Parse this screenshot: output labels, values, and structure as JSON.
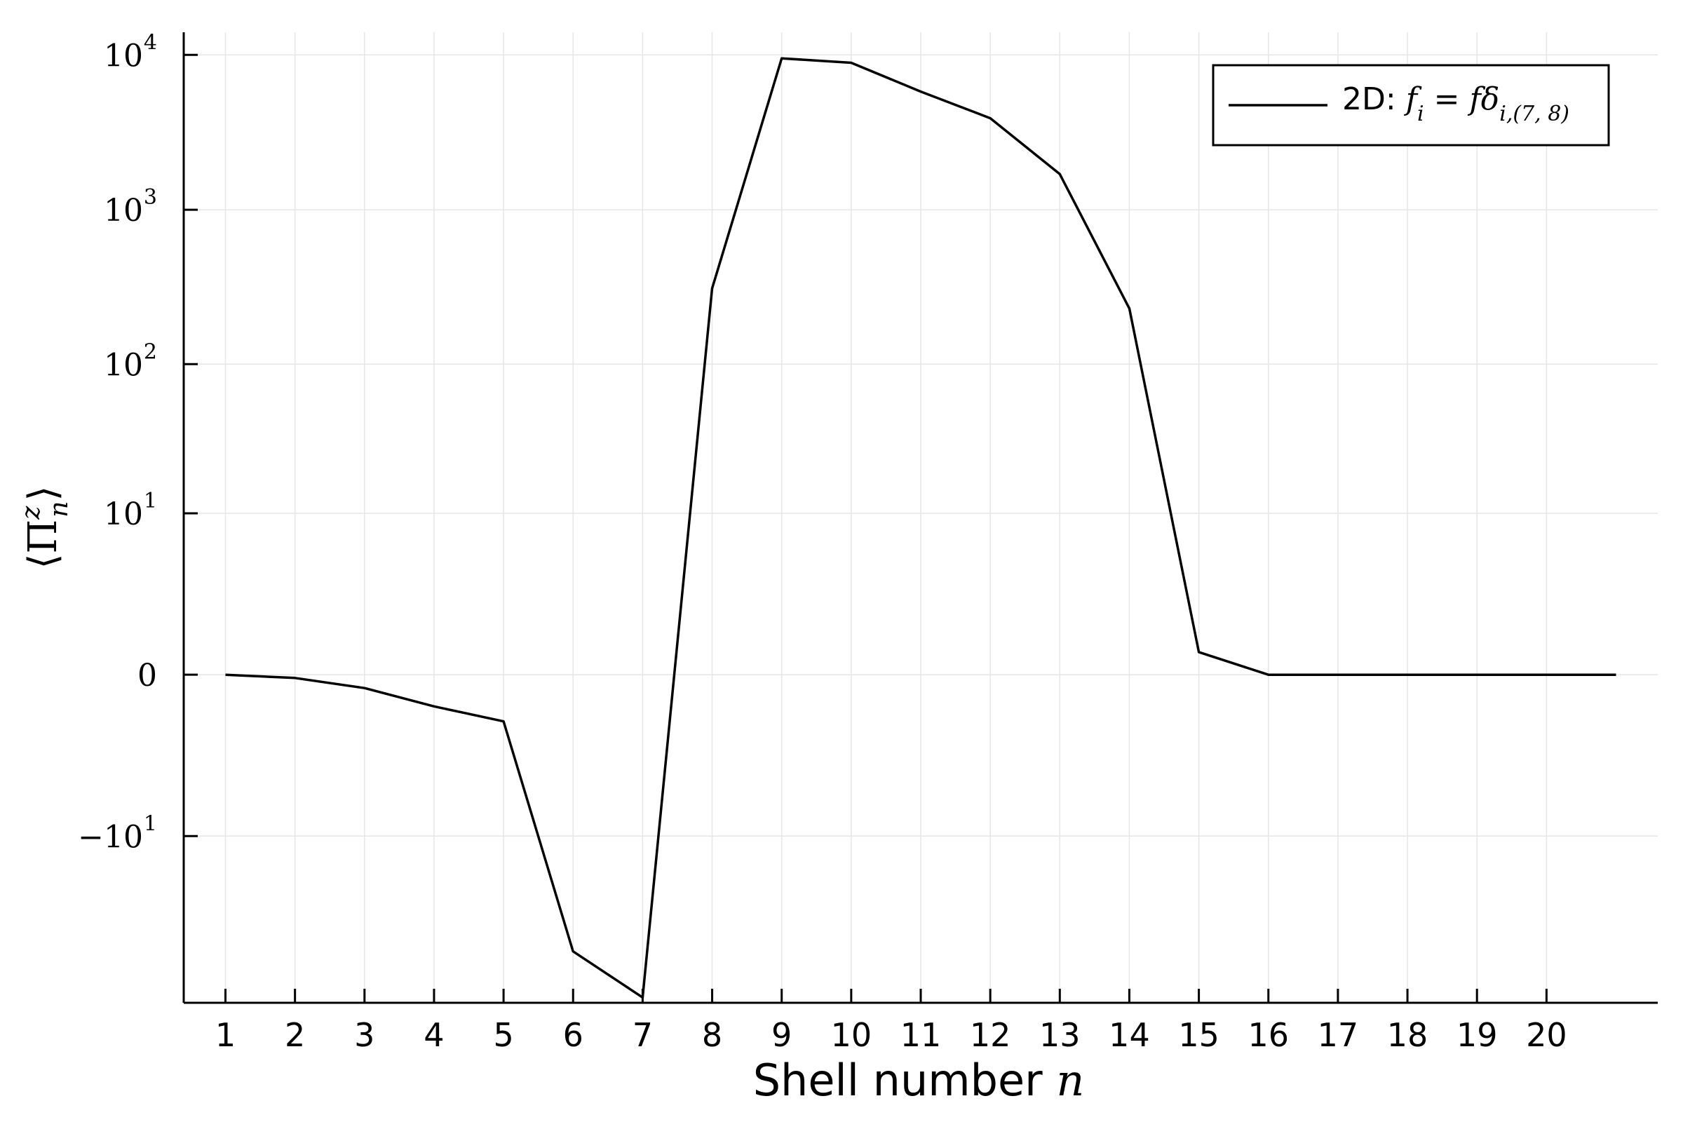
{
  "chart_data": {
    "type": "line",
    "xlabel": "Shell number",
    "xlabel_math": "n",
    "ylabel": "⟨Π",
    "ylabel_sup": "z",
    "ylabel_sub": "n",
    "ylabel_close": "⟩",
    "y_scale": "symlog",
    "grid": true,
    "legend_position": "top-right",
    "x_ticks": [
      1,
      2,
      3,
      4,
      5,
      6,
      7,
      8,
      9,
      10,
      11,
      12,
      13,
      14,
      15,
      16,
      17,
      18,
      19,
      20
    ],
    "xlim": [
      0.4,
      21.6
    ],
    "ylim": [
      -130,
      14000
    ],
    "y_ticks": [
      {
        "value": 10000,
        "base": "10",
        "exp": "4"
      },
      {
        "value": 1000,
        "base": "10",
        "exp": "3"
      },
      {
        "value": 100,
        "base": "10",
        "exp": "2"
      },
      {
        "value": 10,
        "base": "10",
        "exp": "1"
      },
      {
        "value": 0,
        "base": "0",
        "exp": ""
      },
      {
        "value": -10,
        "base": "−10",
        "exp": "1"
      }
    ],
    "series": [
      {
        "name": "2D: f_i = f δ_{i,(7,8)}",
        "color": "#000000",
        "x": [
          1,
          2,
          3,
          4,
          5,
          6,
          7,
          8,
          9,
          10,
          11,
          12,
          13,
          14,
          15,
          16,
          17,
          18,
          19,
          20,
          21
        ],
        "y": [
          0,
          -0.05,
          -0.22,
          -0.6,
          -1.0,
          -60,
          -120,
          310,
          9500,
          8900,
          5800,
          3900,
          1700,
          230,
          0.4,
          0,
          0,
          0,
          0,
          0,
          0
        ]
      }
    ],
    "legend": {
      "prefix": "2D: ",
      "f": "f",
      "sub_i": "i",
      "equals": " = ",
      "fdelta": "fδ",
      "sub_delta": "i,(7, 8)"
    }
  }
}
